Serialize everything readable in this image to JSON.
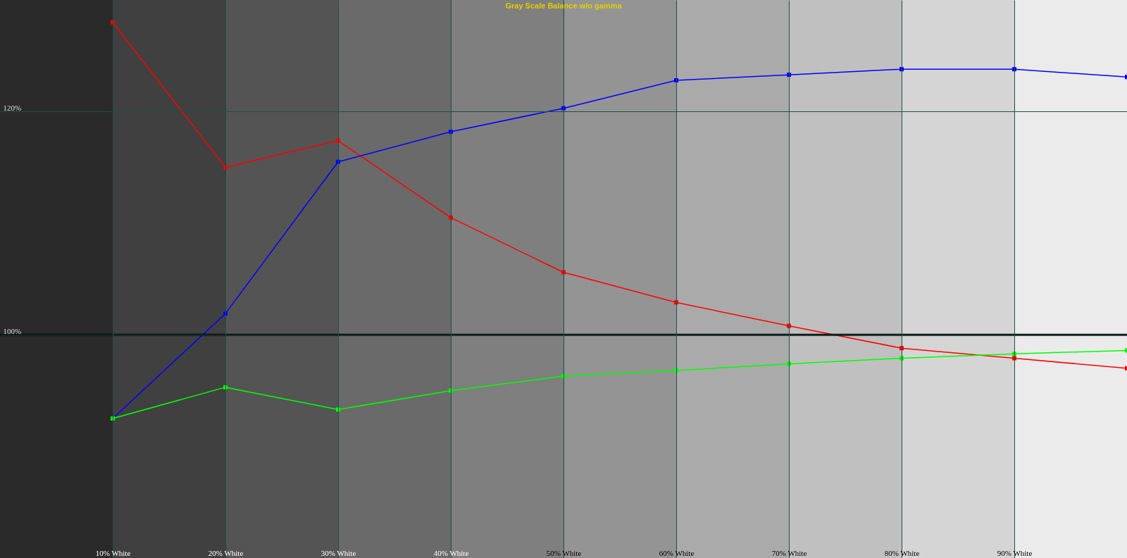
{
  "chart_data": {
    "type": "line",
    "title": "Gray Scale Balance w/o gamma",
    "x": [
      10,
      20,
      30,
      40,
      50,
      60,
      70,
      80,
      90,
      100
    ],
    "xlim": [
      0,
      100
    ],
    "xticks": [
      {
        "value": 10,
        "label": "10% White"
      },
      {
        "value": 20,
        "label": "20% White"
      },
      {
        "value": 30,
        "label": "30% White"
      },
      {
        "value": 40,
        "label": "40% White"
      },
      {
        "value": 50,
        "label": "50% White"
      },
      {
        "value": 60,
        "label": "60% White"
      },
      {
        "value": 70,
        "label": "70% White"
      },
      {
        "value": 80,
        "label": "80% White"
      },
      {
        "value": 90,
        "label": "90% White"
      }
    ],
    "ylim": [
      80,
      130
    ],
    "yticks": [
      {
        "value": 100,
        "label": "100%"
      },
      {
        "value": 120,
        "label": "120%"
      }
    ],
    "grid": true,
    "marker": "square",
    "line_style": "solid",
    "series": [
      {
        "color": "#ff0000",
        "values": [
          128.0,
          115.0,
          117.4,
          110.5,
          105.6,
          102.9,
          100.8,
          98.8,
          97.9,
          97.0
        ]
      },
      {
        "color": "#0000ff",
        "values": [
          92.5,
          101.9,
          115.5,
          118.2,
          120.3,
          122.8,
          123.3,
          123.8,
          123.8,
          123.1
        ]
      },
      {
        "color": "#00ff00",
        "values": [
          92.5,
          95.3,
          93.3,
          95.0,
          96.3,
          96.8,
          97.4,
          97.9,
          98.3,
          98.6
        ]
      }
    ],
    "ref_lines": [
      {
        "axis": "y",
        "value": 100,
        "color": "#000000",
        "line_style": "solid"
      }
    ],
    "bands": [
      {
        "axis": "x",
        "from": 0,
        "to": 10,
        "color": "#2a2a2a"
      },
      {
        "axis": "x",
        "from": 10,
        "to": 20,
        "color": "#404040"
      },
      {
        "axis": "x",
        "from": 20,
        "to": 30,
        "color": "#545454"
      },
      {
        "axis": "x",
        "from": 30,
        "to": 40,
        "color": "#6a6a6a"
      },
      {
        "axis": "x",
        "from": 40,
        "to": 50,
        "color": "#7f7f7f"
      },
      {
        "axis": "x",
        "from": 50,
        "to": 60,
        "color": "#949494"
      },
      {
        "axis": "x",
        "from": 60,
        "to": 70,
        "color": "#aaaaaa"
      },
      {
        "axis": "x",
        "from": 70,
        "to": 80,
        "color": "#c0c0c0"
      },
      {
        "axis": "x",
        "from": 80,
        "to": 90,
        "color": "#d5d5d5"
      },
      {
        "axis": "x",
        "from": 90,
        "to": 100,
        "color": "#ebebeb"
      }
    ]
  }
}
